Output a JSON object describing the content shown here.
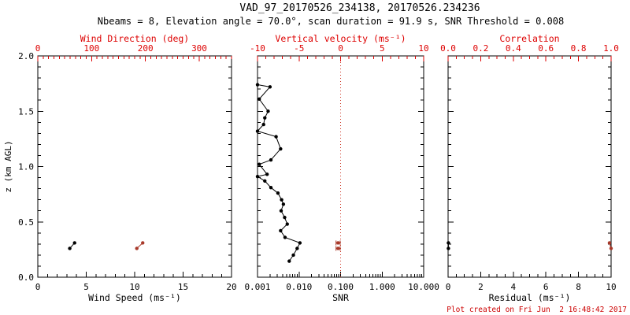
{
  "header": {
    "title": "VAD_97_20170526_234138, 20170526.234236",
    "subtitle": "Nbeams = 8, Elevation angle = 70.0°, scan duration = 91.9 s, SNR Threshold = 0.008"
  },
  "footer": {
    "created_text": "Plot created on Fri Jun  2 16:48:42 2017"
  },
  "colors": {
    "axis_red": "#dd0000",
    "data_red": "#a8392a",
    "black": "#000000",
    "ref_red": "#cc3322",
    "background": "#ffffff"
  },
  "chart_data": [
    {
      "id": "wind",
      "type": "scatter",
      "y": {
        "label": "z (km AGL)",
        "lim": [
          0,
          2.0
        ],
        "ticks": [
          0.0,
          0.5,
          1.0,
          1.5,
          2.0
        ],
        "tick_labels": [
          "0.0",
          "0.5",
          "1.0",
          "1.5",
          "2.0"
        ],
        "minor": 0.1
      },
      "x_bottom": {
        "label": "Wind Speed (ms⁻¹)",
        "lim": [
          0,
          20
        ],
        "ticks": [
          0,
          5,
          10,
          15,
          20
        ],
        "tick_labels": [
          "0",
          "5",
          "10",
          "15",
          "20"
        ],
        "minor": 1
      },
      "x_top": {
        "label": "Wind Direction (deg)",
        "lim": [
          0,
          360
        ],
        "ticks": [
          0,
          100,
          200,
          300
        ],
        "tick_labels": [
          "0",
          "100",
          "200",
          "300"
        ],
        "minor": 10
      },
      "series": [
        {
          "name": "wind-speed",
          "axis": "bottom",
          "color": "black",
          "connect": true,
          "points": [
            {
              "x": 3.3,
              "z": 0.26
            },
            {
              "x": 3.8,
              "z": 0.31
            }
          ]
        },
        {
          "name": "wind-direction",
          "axis": "top",
          "color": "data_red",
          "connect": true,
          "points": [
            {
              "x": 184,
              "z": 0.26
            },
            {
              "x": 195,
              "z": 0.31
            }
          ]
        }
      ]
    },
    {
      "id": "snr-vertical-velocity",
      "type": "line",
      "y": {
        "lim": [
          0,
          2.0
        ],
        "ticks": [
          0.0,
          0.5,
          1.0,
          1.5,
          2.0
        ],
        "minor": 0.1
      },
      "x_bottom": {
        "label": "SNR",
        "scale": "log",
        "lim": [
          0.001,
          10.0
        ],
        "ticks": [
          0.001,
          0.01,
          0.1,
          1.0,
          10.0
        ],
        "tick_labels": [
          "0.001",
          "0.010",
          "0.100",
          "1.000",
          "10.000"
        ]
      },
      "x_top": {
        "label": "Vertical velocity (ms⁻¹)",
        "lim": [
          -10,
          10
        ],
        "ticks": [
          -10,
          -5,
          0,
          5,
          10
        ],
        "tick_labels": [
          "-10",
          "-5",
          "0",
          "5",
          "10"
        ],
        "minor": 1
      },
      "ref_line": {
        "axis": "top",
        "value": 0,
        "style": "dotted"
      },
      "series": [
        {
          "name": "snr-profile",
          "axis": "bottom",
          "color": "black",
          "connect": true,
          "points": [
            {
              "x": 0.001,
              "z": 1.74
            },
            {
              "x": 0.002,
              "z": 1.72
            },
            {
              "x": 0.0011,
              "z": 1.61
            },
            {
              "x": 0.0018,
              "z": 1.5
            },
            {
              "x": 0.0015,
              "z": 1.44
            },
            {
              "x": 0.0014,
              "z": 1.38
            },
            {
              "x": 0.001,
              "z": 1.32
            },
            {
              "x": 0.0028,
              "z": 1.27
            },
            {
              "x": 0.0036,
              "z": 1.16
            },
            {
              "x": 0.0021,
              "z": 1.06
            },
            {
              "x": 0.0011,
              "z": 1.02
            },
            {
              "x": 0.0017,
              "z": 0.93
            },
            {
              "x": 0.001,
              "z": 0.91
            },
            {
              "x": 0.0015,
              "z": 0.87
            },
            {
              "x": 0.0021,
              "z": 0.81
            },
            {
              "x": 0.0031,
              "z": 0.76
            },
            {
              "x": 0.0038,
              "z": 0.7
            },
            {
              "x": 0.0042,
              "z": 0.66
            },
            {
              "x": 0.0037,
              "z": 0.6
            },
            {
              "x": 0.0045,
              "z": 0.54
            },
            {
              "x": 0.0052,
              "z": 0.48
            },
            {
              "x": 0.0036,
              "z": 0.42
            },
            {
              "x": 0.0046,
              "z": 0.36
            },
            {
              "x": 0.0105,
              "z": 0.31
            },
            {
              "x": 0.009,
              "z": 0.26
            },
            {
              "x": 0.0073,
              "z": 0.2
            },
            {
              "x": 0.0058,
              "z": 0.145
            }
          ]
        },
        {
          "name": "vertical-velocity",
          "axis": "top",
          "color": "data_red",
          "connect": false,
          "xerr": 0.25,
          "points": [
            {
              "x": -0.3,
              "z": 0.26
            },
            {
              "x": -0.3,
              "z": 0.31
            }
          ]
        }
      ]
    },
    {
      "id": "residual-correlation",
      "type": "scatter",
      "y": {
        "lim": [
          0,
          2.0
        ],
        "ticks": [
          0.0,
          0.5,
          1.0,
          1.5,
          2.0
        ],
        "minor": 0.1
      },
      "x_bottom": {
        "label": "Residual (ms⁻¹)",
        "lim": [
          0,
          10
        ],
        "ticks": [
          0,
          2,
          4,
          6,
          8,
          10
        ],
        "tick_labels": [
          "0",
          "2",
          "4",
          "6",
          "8",
          "10"
        ],
        "minor": 0.5
      },
      "x_top": {
        "label": "Correlation",
        "lim": [
          0.0,
          1.0
        ],
        "ticks": [
          0.0,
          0.2,
          0.4,
          0.6,
          0.8,
          1.0
        ],
        "tick_labels": [
          "0.0",
          "0.2",
          "0.4",
          "0.6",
          "0.8",
          "1.0"
        ],
        "minor": 0.05
      },
      "series": [
        {
          "name": "residual",
          "axis": "bottom",
          "color": "black",
          "connect": true,
          "points": [
            {
              "x": 0.02,
              "z": 0.26
            },
            {
              "x": 0.02,
              "z": 0.31
            }
          ]
        },
        {
          "name": "correlation",
          "axis": "top",
          "color": "data_red",
          "connect": true,
          "points": [
            {
              "x": 1.0,
              "z": 0.26
            },
            {
              "x": 0.99,
              "z": 0.31
            }
          ]
        }
      ]
    }
  ]
}
